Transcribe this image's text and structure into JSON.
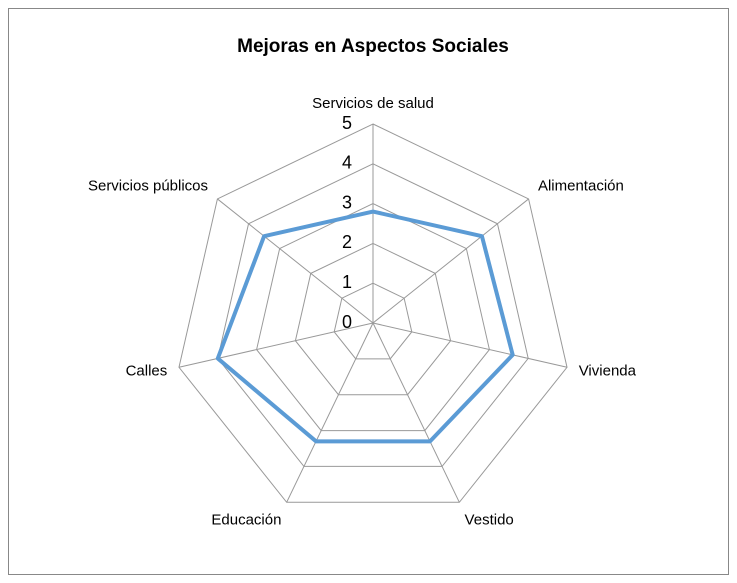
{
  "chart_data": {
    "type": "radar",
    "title": "Mejoras en Aspectos Sociales",
    "categories": [
      "Servicios de salud",
      "Alimentación",
      "Vivienda",
      "Vestido",
      "Educación",
      "Calles",
      "Servicios públicos"
    ],
    "series": [
      {
        "color": "#5b9bd5",
        "values": [
          2.8,
          3.5,
          3.6,
          3.3,
          3.3,
          4.0,
          3.5
        ]
      }
    ],
    "ylim": [
      0,
      5
    ],
    "yticks": [
      0,
      1,
      2,
      3,
      4,
      5
    ],
    "grid": true
  }
}
